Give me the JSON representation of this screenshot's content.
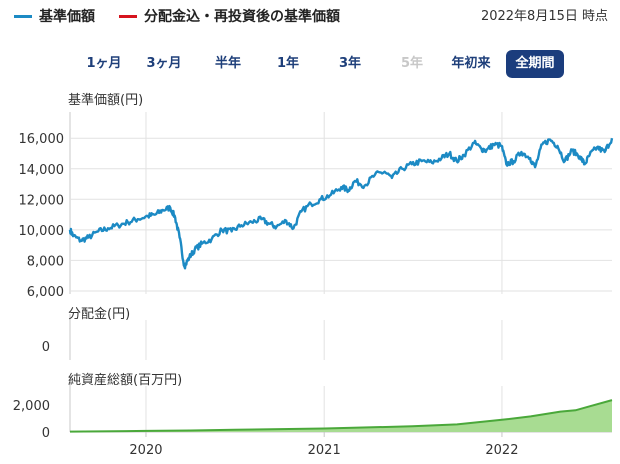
{
  "legend": {
    "items": [
      {
        "label": "基準価額",
        "color": "#1c8ac4"
      },
      {
        "label": "分配金込・再投資後の基準価額",
        "color": "#d6141e"
      }
    ]
  },
  "as_of": "2022年8月15日 時点",
  "range_buttons": [
    {
      "label": "1ヶ月",
      "state": "normal"
    },
    {
      "label": "3ヶ月",
      "state": "normal"
    },
    {
      "label": "半年",
      "state": "normal"
    },
    {
      "label": "1年",
      "state": "normal"
    },
    {
      "label": "3年",
      "state": "normal"
    },
    {
      "label": "5年",
      "state": "disabled"
    },
    {
      "label": "年初来",
      "state": "normal"
    },
    {
      "label": "全期間",
      "state": "active"
    }
  ],
  "colors": {
    "nav_line": "#1c8ac4",
    "assets_line": "#4aa83a",
    "assets_fill": "#a8dc92",
    "grid": "#e2e2e2",
    "axis": "#c8c8c8",
    "button_active_bg": "#1b3d7d",
    "button_text": "#1e3f7a"
  },
  "chart_data": [
    {
      "type": "line",
      "title": "基準価額(円)",
      "ylim": [
        5800,
        16800
      ],
      "y_ticks": [
        "6,000",
        "8,000",
        "10,000",
        "12,000",
        "14,000",
        "16,000"
      ],
      "y_tick_values": [
        6000,
        8000,
        10000,
        12000,
        14000,
        16000
      ],
      "x_ticks": [
        "2020",
        "2021",
        "2022"
      ],
      "x_tick_values": [
        "2020-01-01",
        "2021-01-01",
        "2022-01-01"
      ],
      "x_range": [
        "2019-07-29",
        "2022-08-15"
      ],
      "grid": true,
      "series": [
        {
          "name": "基準価額",
          "x": [
            "2019-07-29",
            "2019-08-05",
            "2019-08-20",
            "2019-09-05",
            "2019-09-25",
            "2019-10-15",
            "2019-11-05",
            "2019-11-25",
            "2019-12-15",
            "2020-01-05",
            "2020-01-20",
            "2020-02-05",
            "2020-02-20",
            "2020-03-01",
            "2020-03-10",
            "2020-03-20",
            "2020-03-30",
            "2020-04-10",
            "2020-04-25",
            "2020-05-15",
            "2020-06-05",
            "2020-06-25",
            "2020-07-15",
            "2020-08-05",
            "2020-08-25",
            "2020-09-10",
            "2020-09-25",
            "2020-10-15",
            "2020-10-30",
            "2020-11-15",
            "2020-12-05",
            "2020-12-25",
            "2021-01-15",
            "2021-02-05",
            "2021-02-20",
            "2021-03-05",
            "2021-03-25",
            "2021-04-15",
            "2021-05-05",
            "2021-05-20",
            "2021-06-10",
            "2021-06-30",
            "2021-07-20",
            "2021-08-10",
            "2021-08-30",
            "2021-09-15",
            "2021-09-30",
            "2021-10-15",
            "2021-11-05",
            "2021-11-20",
            "2021-11-30",
            "2021-12-15",
            "2021-12-31",
            "2022-01-10",
            "2022-01-25",
            "2022-02-10",
            "2022-02-28",
            "2022-03-10",
            "2022-03-25",
            "2022-04-10",
            "2022-04-25",
            "2022-05-10",
            "2022-05-25",
            "2022-06-10",
            "2022-06-20",
            "2022-06-30",
            "2022-07-15",
            "2022-07-31",
            "2022-08-15"
          ],
          "values": [
            10000,
            9600,
            9300,
            9500,
            9900,
            10100,
            10300,
            10500,
            10700,
            10900,
            11000,
            11300,
            11450,
            10800,
            9500,
            7600,
            8200,
            8700,
            9100,
            9400,
            10000,
            9900,
            10300,
            10500,
            10700,
            10400,
            10200,
            10600,
            10100,
            11200,
            11700,
            12000,
            12300,
            12800,
            12600,
            13200,
            12900,
            13600,
            13800,
            13400,
            14000,
            14300,
            14500,
            14400,
            14700,
            15000,
            14500,
            14900,
            15700,
            15300,
            15200,
            15600,
            15500,
            14300,
            14500,
            15100,
            14700,
            14100,
            15600,
            15900,
            15500,
            14500,
            15200,
            14800,
            14300,
            14900,
            15400,
            15100,
            16000
          ]
        }
      ]
    },
    {
      "type": "bar",
      "title": "分配金(円)",
      "ylim": [
        0,
        1
      ],
      "y_ticks": [
        "0"
      ],
      "y_tick_values": [
        0
      ],
      "series": [
        {
          "name": "分配金",
          "values": []
        }
      ]
    },
    {
      "type": "area",
      "title": "純資産総額(百万円)",
      "ylim": [
        0,
        2800
      ],
      "y_ticks": [
        "0",
        "2,000"
      ],
      "y_tick_values": [
        0,
        2000
      ],
      "series": [
        {
          "name": "純資産総額",
          "x": [
            "2019-07-29",
            "2020-01-01",
            "2020-04-01",
            "2020-07-01",
            "2021-01-01",
            "2021-07-01",
            "2021-10-01",
            "2022-01-01",
            "2022-03-01",
            "2022-05-01",
            "2022-06-01",
            "2022-07-01",
            "2022-08-15"
          ],
          "values": [
            30,
            80,
            110,
            160,
            260,
            420,
            560,
            900,
            1150,
            1500,
            1600,
            1900,
            2350
          ]
        }
      ]
    }
  ]
}
